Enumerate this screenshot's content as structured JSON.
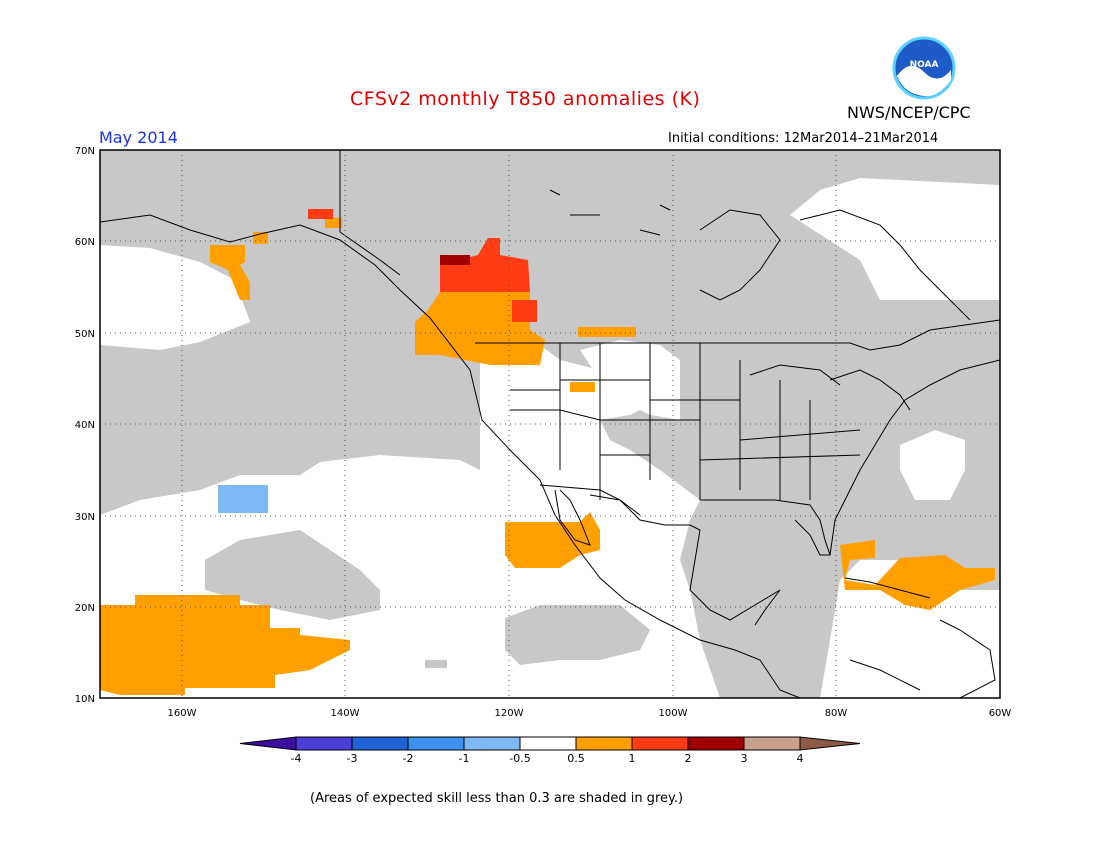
{
  "title": "CFSv2 monthly T850 anomalies (K)",
  "period": "May 2014",
  "initial_conditions": "Initial conditions: 12Mar2014–21Mar2014",
  "agency": "NWS/NCEP/CPC",
  "logo_text": "NOAA",
  "footnote": "(Areas of expected skill less than 0.3 are shaded in grey.)",
  "map": {
    "lon_range": [
      -170,
      -60
    ],
    "lat_range": [
      10,
      70
    ],
    "lat_ticks": [
      "70N",
      "60N",
      "50N",
      "40N",
      "30N",
      "20N",
      "10N"
    ],
    "lon_ticks": [
      "160W",
      "140W",
      "120W",
      "100W",
      "80W",
      "60W"
    ]
  },
  "colorbar": {
    "labels": [
      "-4",
      "-3",
      "-2",
      "-1",
      "-0.5",
      "0.5",
      "1",
      "2",
      "3",
      "4"
    ],
    "colors": [
      "#3c0ea0",
      "#4a3ed6",
      "#1f63d6",
      "#3d91ef",
      "#7fb9f5",
      "#ffffff",
      "#ffa000",
      "#ff3c14",
      "#a00000",
      "#c8a08c",
      "#8c5a46"
    ]
  },
  "colors": {
    "grey_skill": "#c8c8c8",
    "title_red": "#e00000",
    "period_blue": "#1a33e6"
  }
}
